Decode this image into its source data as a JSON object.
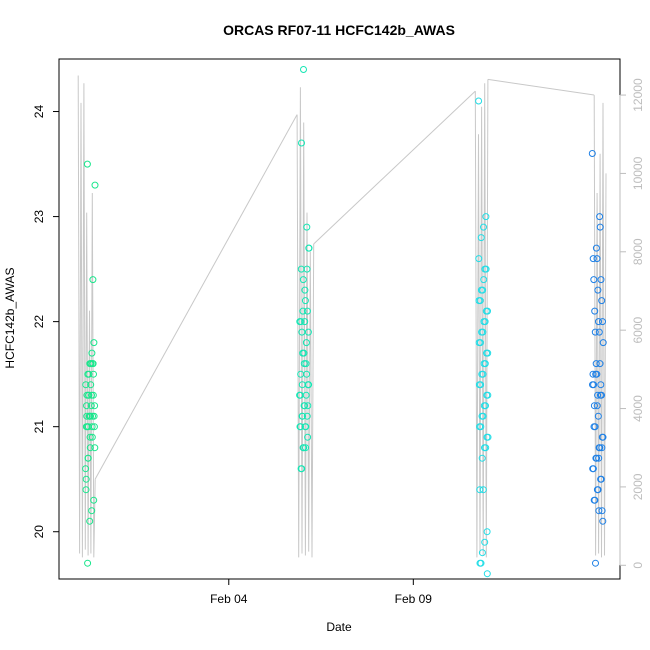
{
  "chart_data": {
    "type": "scatter",
    "title": "ORCAS RF07-11 HCFC142b_AWAS",
    "xlabel": "Date",
    "ylabel": "HCFC142b_AWAS",
    "x_tick_labels": [
      "Feb 04",
      "Feb 09"
    ],
    "y_ticks": [
      20,
      21,
      22,
      23,
      24
    ],
    "y_right_ticks": [
      0,
      2000,
      4000,
      6000,
      8000,
      10000,
      12000
    ],
    "ylim": [
      19.55,
      24.5
    ],
    "y_right_lim": [
      -350,
      12920
    ],
    "xlim_days": [
      -0.6,
      14.6
    ],
    "x_tick_days": [
      4,
      9
    ],
    "colors": {
      "flight1": "#19e68c",
      "flight2": "#15e6b4",
      "flight3": "#22dde6",
      "flight4": "#1e80e6",
      "altitude": "#c8c8c8"
    },
    "series": [
      {
        "color_key": "flight1",
        "day_center": 0.25,
        "day_spread": 0.13,
        "values": [
          20.6,
          21.6,
          21.6,
          21.5,
          21.3,
          21.2,
          21.1,
          21.1,
          21.0,
          21.0,
          21.8,
          21.7,
          21.6,
          21.5,
          21.4,
          21.3,
          21.2,
          21.1,
          21.0,
          20.8,
          21.6,
          21.4,
          21.3,
          21.2,
          21.1,
          21.0,
          20.9,
          20.7,
          20.4,
          21.5,
          21.3,
          21.1,
          23.5,
          23.3,
          22.4,
          21.6,
          21.3,
          21.1,
          21.0,
          20.9,
          20.8,
          20.7,
          20.5,
          20.3,
          20.2,
          20.1,
          19.7
        ]
      },
      {
        "color_key": "flight2",
        "day_center": 6.05,
        "day_spread": 0.13,
        "values": [
          21.3,
          21.1,
          21.0,
          20.8,
          20.6,
          21.4,
          21.5,
          21.2,
          21.1,
          21.0,
          21.4,
          21.6,
          21.7,
          21.9,
          22.0,
          22.1,
          22.2,
          22.4,
          22.5,
          22.7,
          22.9,
          22.0,
          21.7,
          21.5,
          21.4,
          21.3,
          21.2,
          21.1,
          21.0,
          20.9,
          20.8,
          24.4,
          23.7,
          22.7,
          22.5,
          22.3,
          22.1,
          22.0,
          21.9,
          21.8,
          21.6,
          21.4,
          21.3,
          21.2,
          21.0,
          20.8,
          20.6
        ]
      },
      {
        "color_key": "flight3",
        "day_center": 10.9,
        "day_spread": 0.13,
        "values": [
          24.1,
          23.0,
          22.9,
          22.8,
          22.6,
          22.5,
          22.4,
          22.3,
          22.2,
          22.1,
          22.0,
          21.9,
          21.8,
          21.7,
          21.6,
          21.5,
          21.4,
          21.3,
          21.2,
          21.1,
          21.0,
          20.9,
          20.8,
          20.7,
          20.4,
          20.0,
          19.9,
          19.8,
          19.7,
          19.6,
          22.5,
          22.3,
          22.2,
          22.1,
          22.0,
          21.9,
          21.8,
          21.7,
          21.6,
          21.5,
          21.4,
          21.3,
          21.2,
          21.1,
          21.0,
          20.9,
          20.8,
          20.4,
          19.7
        ]
      },
      {
        "color_key": "flight4",
        "day_center": 14.0,
        "day_spread": 0.15,
        "values": [
          23.6,
          22.9,
          22.6,
          22.4,
          22.2,
          22.0,
          21.9,
          21.8,
          21.6,
          21.5,
          21.4,
          21.3,
          21.1,
          21.0,
          20.9,
          20.8,
          20.7,
          20.6,
          20.5,
          20.4,
          20.3,
          20.1,
          23.0,
          22.7,
          22.6,
          22.4,
          22.3,
          22.1,
          22.0,
          21.9,
          21.6,
          21.5,
          21.4,
          21.3,
          21.2,
          20.9,
          20.8,
          20.7,
          20.6,
          20.5,
          20.4,
          20.3,
          20.2,
          20.2,
          21.5,
          21.4,
          21.3,
          21.2,
          21.0,
          20.8,
          20.7,
          19.7
        ]
      }
    ],
    "altitude_segments": [
      {
        "day_start": -0.08,
        "day_end": 0.38,
        "peaks": [
          12500,
          300,
          11800,
          200,
          12300,
          400,
          9000,
          250,
          6500,
          300,
          9500,
          200,
          2200
        ]
      },
      {
        "day_start": 5.85,
        "day_end": 6.3,
        "peaks": [
          11500,
          200,
          12200,
          300,
          11300,
          250,
          9000,
          350,
          8000,
          200,
          8200
        ]
      },
      {
        "day_start": 10.68,
        "day_end": 11.02,
        "peaks": [
          12100,
          200,
          11000,
          300,
          11700,
          250,
          12300,
          200,
          12400
        ]
      },
      {
        "day_start": 13.9,
        "day_end": 14.22,
        "peaks": [
          12000,
          250,
          9500,
          300,
          10500,
          200,
          11800,
          250,
          10000
        ]
      }
    ],
    "altitude_transits": [
      {
        "day_start": 0.38,
        "alt_start": 2200,
        "day_end": 5.85,
        "alt_end": 11500
      },
      {
        "day_start": 6.3,
        "alt_start": 8200,
        "day_end": 10.68,
        "alt_end": 12100
      },
      {
        "day_start": 11.02,
        "alt_start": 12400,
        "day_end": 13.9,
        "alt_end": 12000
      }
    ]
  }
}
